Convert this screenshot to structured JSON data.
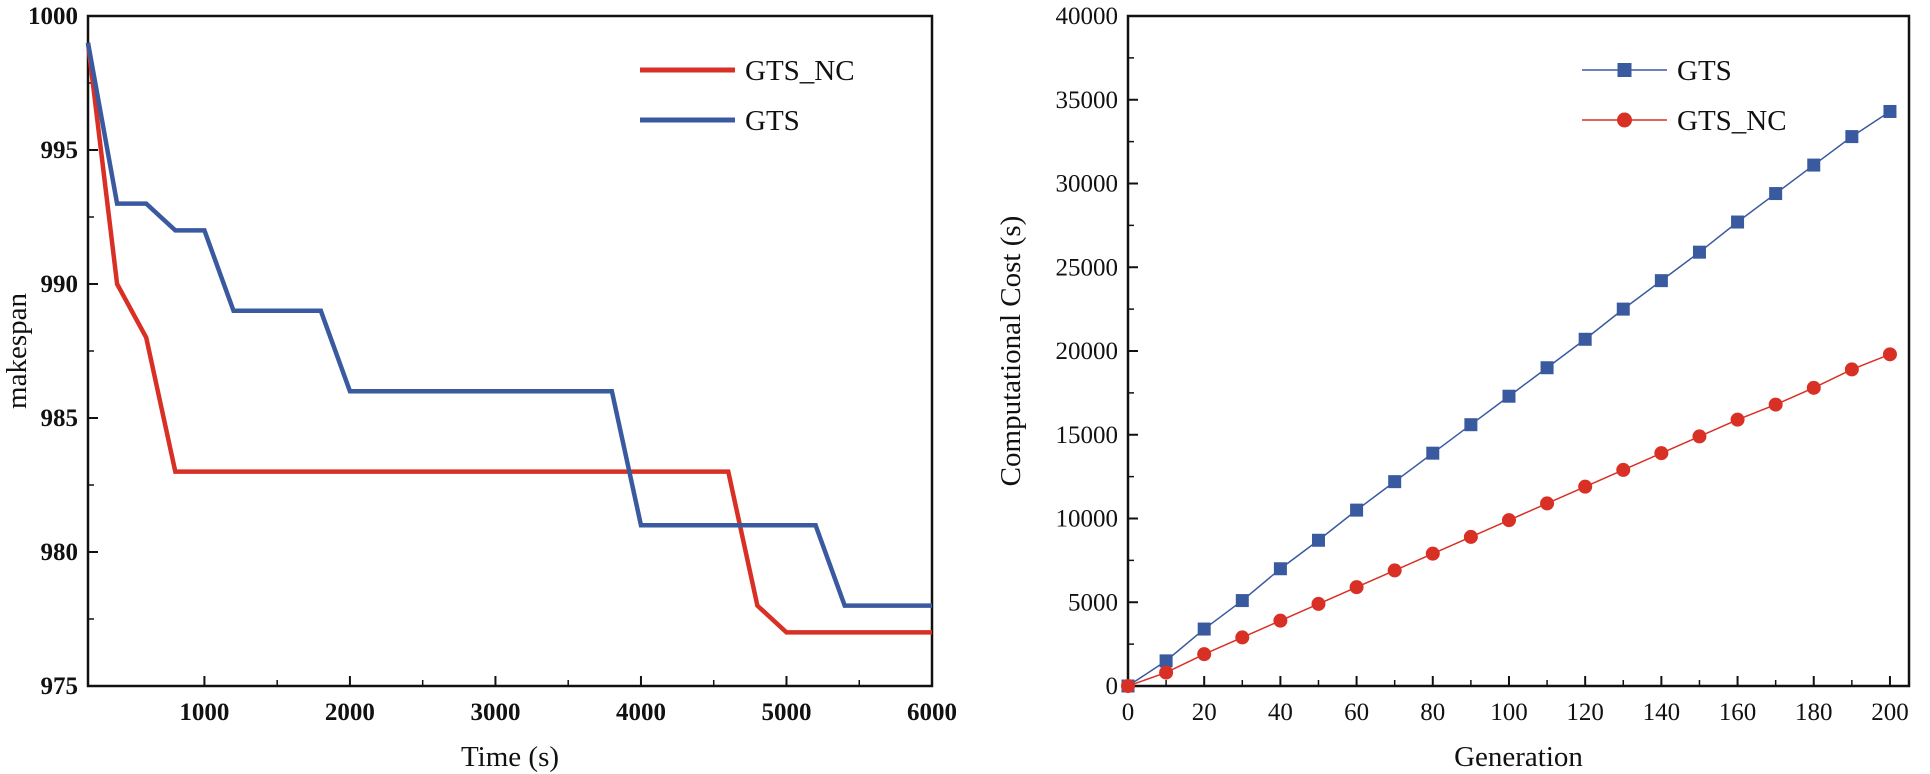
{
  "chart_data": [
    {
      "type": "line",
      "xlabel": "Time (s)",
      "ylabel": "makespan",
      "xlim": [
        200,
        6000
      ],
      "ylim": [
        975,
        1000
      ],
      "xticks": [
        1000,
        2000,
        3000,
        4000,
        5000,
        6000
      ],
      "yticks": [
        975,
        980,
        985,
        990,
        995,
        1000
      ],
      "legend_position": "top-right",
      "series": [
        {
          "name": "GTS_NC",
          "color": "#d93025",
          "x": [
            200,
            400,
            600,
            800,
            1000,
            4600,
            4800,
            5000,
            6000
          ],
          "y": [
            999,
            990,
            988,
            983,
            983,
            983,
            978,
            977,
            977
          ]
        },
        {
          "name": "GTS",
          "color": "#3a5aa0",
          "x": [
            200,
            400,
            600,
            800,
            1000,
            1200,
            1800,
            2000,
            3800,
            4000,
            5200,
            5400,
            6000
          ],
          "y": [
            999,
            993,
            993,
            992,
            992,
            989,
            989,
            986,
            986,
            981,
            981,
            978,
            978
          ]
        }
      ]
    },
    {
      "type": "line",
      "xlabel": "Generation",
      "ylabel": "Computational Cost (s)",
      "xlim": [
        0,
        205
      ],
      "ylim": [
        0,
        40000
      ],
      "xticks": [
        0,
        20,
        40,
        60,
        80,
        100,
        120,
        140,
        160,
        180,
        200
      ],
      "yticks": [
        0,
        5000,
        10000,
        15000,
        20000,
        25000,
        30000,
        35000,
        40000
      ],
      "legend_position": "top-right",
      "series": [
        {
          "name": "GTS",
          "color": "#3a5aa0",
          "marker": "square",
          "x": [
            0,
            10,
            20,
            30,
            40,
            50,
            60,
            70,
            80,
            90,
            100,
            110,
            120,
            130,
            140,
            150,
            160,
            170,
            180,
            190,
            200
          ],
          "y": [
            0,
            1500,
            3400,
            5100,
            7000,
            8700,
            10500,
            12200,
            13900,
            15600,
            17300,
            19000,
            20700,
            22500,
            24200,
            25900,
            27700,
            29400,
            31100,
            32800,
            34300
          ]
        },
        {
          "name": "GTS_NC",
          "color": "#d93025",
          "marker": "circle",
          "x": [
            0,
            10,
            20,
            30,
            40,
            50,
            60,
            70,
            80,
            90,
            100,
            110,
            120,
            130,
            140,
            150,
            160,
            170,
            180,
            190,
            200
          ],
          "y": [
            0,
            800,
            1900,
            2900,
            3900,
            4900,
            5900,
            6900,
            7900,
            8900,
            9900,
            10900,
            11900,
            12900,
            13900,
            14900,
            15900,
            16800,
            17800,
            18900,
            19800
          ]
        }
      ]
    }
  ]
}
